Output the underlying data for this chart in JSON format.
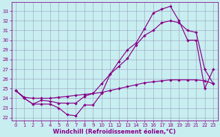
{
  "background_color": "#c8eef0",
  "grid_color": "#9999bb",
  "line_color": "#880088",
  "marker": "D",
  "markersize": 2,
  "linewidth": 0.9,
  "xlabel": "Windchill (Refroidissement éolien,°C)",
  "xlabel_fontsize": 6,
  "tick_fontsize": 5,
  "xlim": [
    -0.5,
    23.5
  ],
  "ylim": [
    21.7,
    33.9
  ],
  "yticks": [
    22,
    23,
    24,
    25,
    26,
    27,
    28,
    29,
    30,
    31,
    32,
    33
  ],
  "xticks": [
    0,
    1,
    2,
    3,
    4,
    5,
    6,
    7,
    8,
    9,
    10,
    11,
    12,
    13,
    14,
    15,
    16,
    17,
    18,
    19,
    20,
    21,
    22,
    23
  ],
  "curve1_x": [
    0,
    1,
    2,
    3,
    4,
    5,
    6,
    7,
    8,
    9,
    10,
    11,
    12,
    13,
    14,
    15,
    16,
    17,
    18,
    19,
    20,
    21,
    22,
    23
  ],
  "curve1_y": [
    24.8,
    24.0,
    23.4,
    23.4,
    23.4,
    23.0,
    22.3,
    22.2,
    23.3,
    23.3,
    24.5,
    26.5,
    27.8,
    29.0,
    29.7,
    31.2,
    32.8,
    33.2,
    33.5,
    32.0,
    30.0,
    30.0,
    25.0,
    27.0
  ],
  "curve2_x": [
    0,
    1,
    2,
    3,
    4,
    5,
    6,
    7,
    8,
    9,
    10,
    11,
    12,
    13,
    14,
    15,
    16,
    17,
    18,
    19,
    20,
    21,
    22,
    23
  ],
  "curve2_y": [
    24.8,
    24.0,
    23.4,
    23.8,
    23.7,
    23.5,
    23.5,
    23.5,
    24.2,
    24.5,
    25.5,
    26.5,
    27.3,
    28.1,
    29.5,
    30.5,
    31.0,
    31.8,
    32.0,
    31.8,
    31.0,
    30.8,
    27.0,
    25.5
  ],
  "curve3_x": [
    0,
    1,
    2,
    3,
    4,
    5,
    6,
    7,
    8,
    9,
    10,
    11,
    12,
    13,
    14,
    15,
    16,
    17,
    18,
    19,
    20,
    21,
    22,
    23
  ],
  "curve3_y": [
    24.8,
    24.1,
    24.0,
    24.0,
    24.0,
    24.1,
    24.2,
    24.3,
    24.4,
    24.5,
    24.6,
    24.8,
    25.0,
    25.2,
    25.4,
    25.6,
    25.7,
    25.8,
    25.9,
    25.9,
    25.9,
    25.9,
    25.8,
    25.5
  ]
}
